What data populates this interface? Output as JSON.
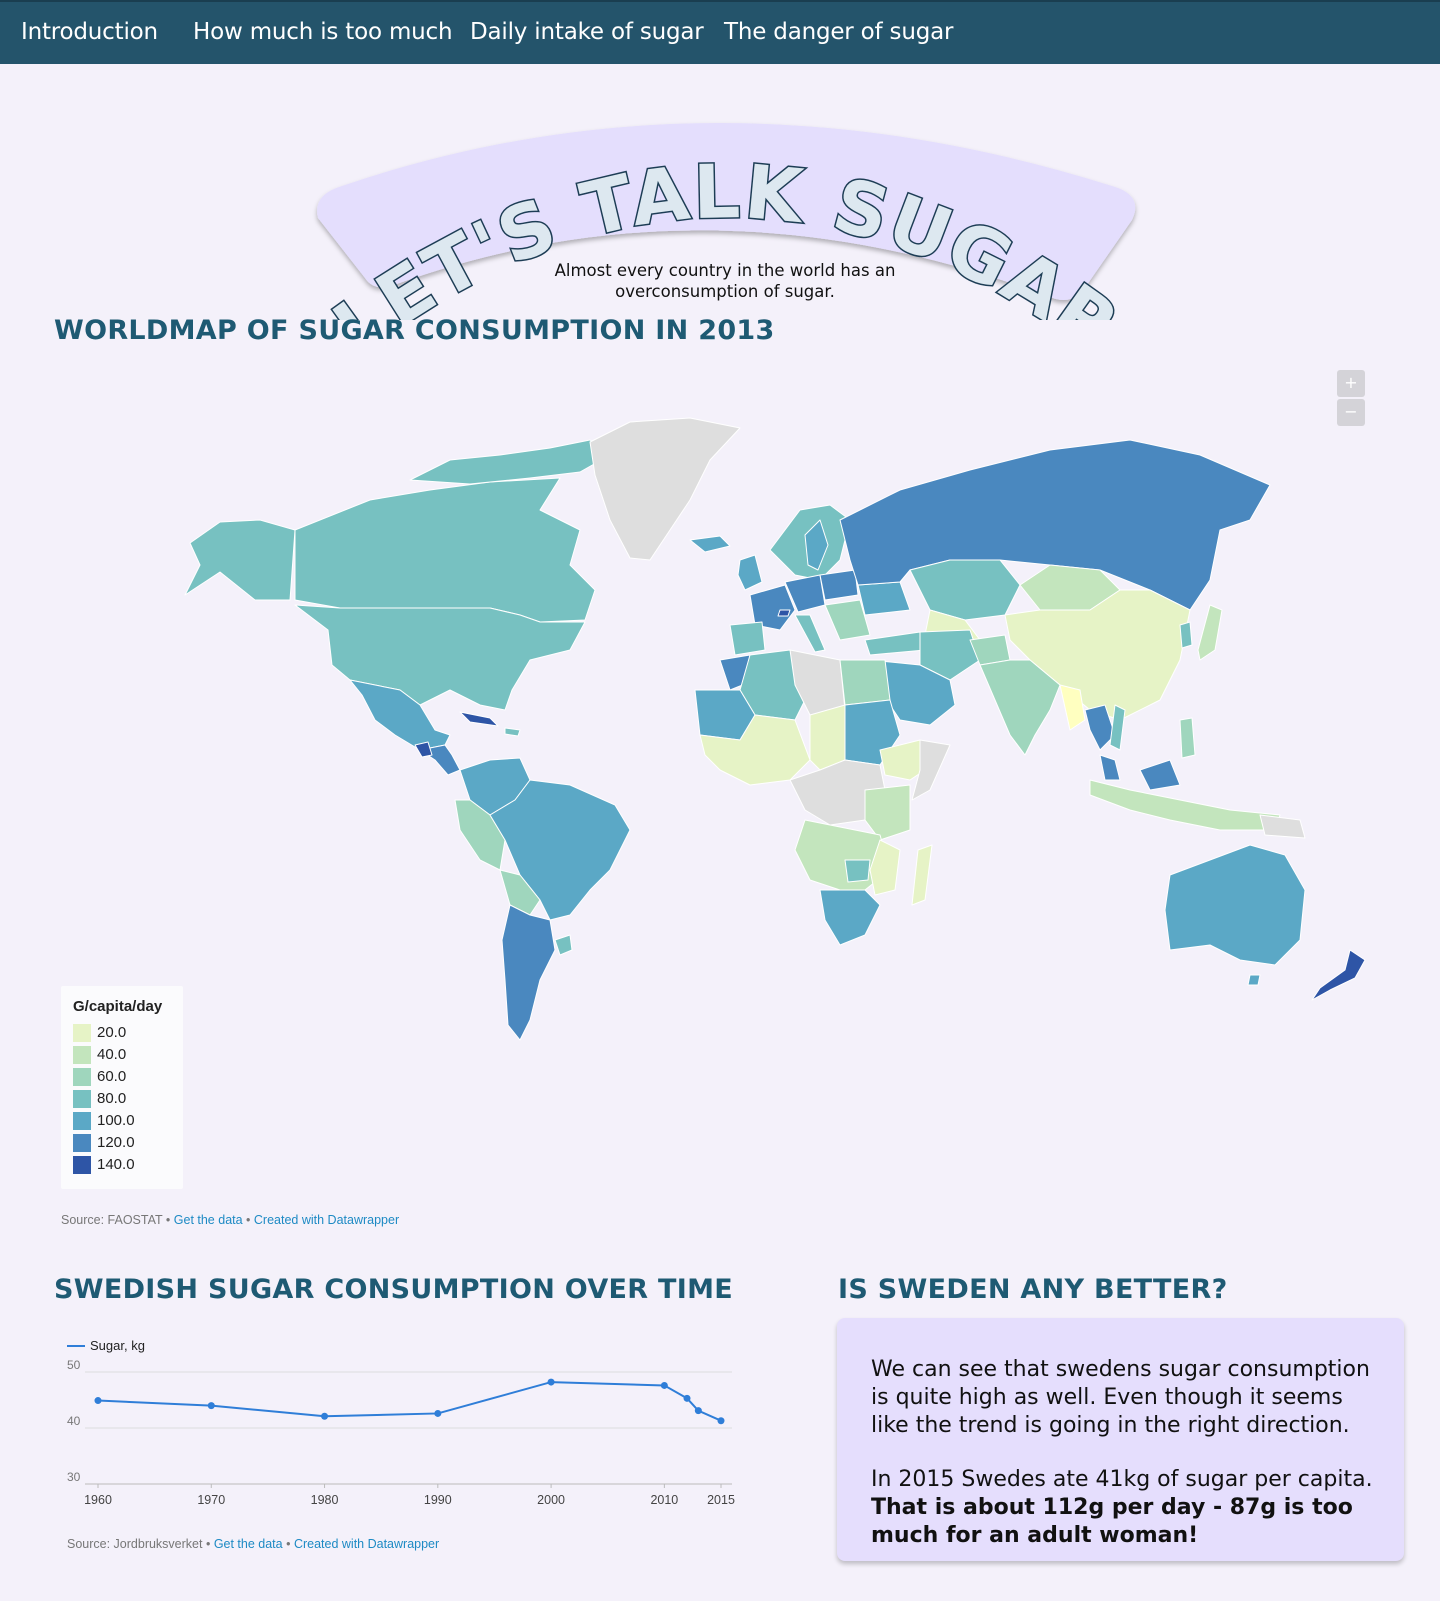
{
  "nav": {
    "items": [
      "Introduction",
      "How much is too much",
      "Daily intake of sugar",
      "The danger of sugar"
    ]
  },
  "hero": {
    "title": "LET'S TALK SUGAR",
    "subtitle": "Almost every country in the world has an overconsumption of sugar."
  },
  "map_section": {
    "title": "WORLDMAP OF SUGAR CONSUMPTION IN 2013",
    "zoom_in": "+",
    "zoom_out": "−",
    "legend_title": "G/capita/day",
    "legend": [
      {
        "label": "20.0",
        "color": "#e6f3c6"
      },
      {
        "label": "40.0",
        "color": "#c3e5bd"
      },
      {
        "label": "60.0",
        "color": "#9fd6bd"
      },
      {
        "label": "80.0",
        "color": "#77c1c1"
      },
      {
        "label": "100.0",
        "color": "#5ba8c6"
      },
      {
        "label": "120.0",
        "color": "#4a88bf"
      },
      {
        "label": "140.0",
        "color": "#2e55a6"
      }
    ],
    "source": "Source: FAOSTAT",
    "get_data": "Get the data",
    "created_with": "Created with Datawrapper"
  },
  "line_section": {
    "title": "SWEDISH SUGAR CONSUMPTION OVER TIME",
    "source": "Source: Jordbruksverket",
    "get_data": "Get the data",
    "created_with": "Created with Datawrapper"
  },
  "chart_data": {
    "type": "line",
    "title": "",
    "xlabel": "",
    "ylabel": "",
    "legend_position": "top-left",
    "series": [
      {
        "name": "Sugar, kg",
        "color": "#2f7ed8",
        "x": [
          1960,
          1970,
          1980,
          1990,
          2000,
          2010,
          2012,
          2013,
          2015
        ],
        "values": [
          44.9,
          44.0,
          42.1,
          42.6,
          48.2,
          47.6,
          45.3,
          43.1,
          41.3
        ]
      }
    ],
    "x_ticks": [
      "1960",
      "1970",
      "1980",
      "1990",
      "2000",
      "2010",
      "2015"
    ],
    "y_ticks": [
      "30",
      "40",
      "50"
    ],
    "xlim": [
      1960,
      2015
    ],
    "ylim": [
      30,
      50
    ],
    "grid": true
  },
  "sweden_section": {
    "title": "IS SWEDEN ANY BETTER?",
    "para1": "We can see that swedens sugar consumption is quite high as well. Even though it seems like the trend is going in the right direction.",
    "para2": "In 2015 Swedes ate 41kg of sugar per capita.",
    "para2_bold": "That is about 112g per day - 87g is too much for an adult woman!"
  }
}
